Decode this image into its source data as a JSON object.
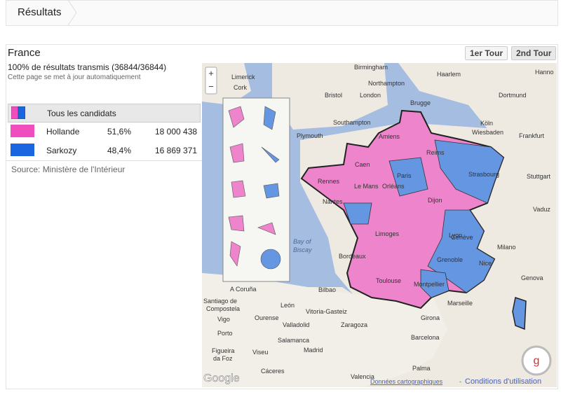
{
  "header": {
    "title": "Résultats"
  },
  "panel": {
    "title": "France",
    "status": "100% de résultats transmis (36844/36844)",
    "note": "Cette page se met à jour automatiquement",
    "tabs": [
      "1er Tour",
      "2nd Tour"
    ],
    "table": {
      "all": "Tous les candidats",
      "rows": [
        {
          "name": "Hollande",
          "percent": "51,6%",
          "votes": "18 000 438",
          "color": "#f04dbf"
        },
        {
          "name": "Sarkozy",
          "percent": "48,4%",
          "votes": "16 869 371",
          "color": "#1a66e0"
        }
      ]
    },
    "source": "Source: Ministère de l'Intérieur"
  },
  "map": {
    "zoom_in": "+",
    "zoom_out": "−",
    "labels": [
      "Limerick",
      "Cork",
      "Birmingham",
      "Northampton",
      "Haarlem",
      "Hanno",
      "Bristol",
      "London",
      "Dortmund",
      "Brugge",
      "Southampton",
      "Köln",
      "Wiesbaden",
      "Frankfurt",
      "Plymouth",
      "Stuttgart",
      "Vaduz",
      "Bay of",
      "Biscay",
      "Milano",
      "Genova",
      "Bilbao",
      "A Coruña",
      "Santiago de",
      "Compostela",
      "León",
      "Vigo",
      "Ourense",
      "Valladolid",
      "Zaragoza",
      "Girona",
      "Marseille",
      "Porto",
      "Salamanca",
      "Barcelona",
      "Madrid",
      "Viseu",
      "Figueira",
      "da Foz",
      "Palma",
      "Valencia",
      "Cáceres",
      "Vitoria-Gasteiz",
      "Rennes",
      "Nantes",
      "Le Mans",
      "Orléans",
      "Paris",
      "Dijon",
      "Limoges",
      "Bordeaux",
      "Toulouse",
      "Montpellier",
      "Lyon",
      "Grenoble",
      "Genève",
      "Strasbourg",
      "Reims",
      "Amiens",
      "Caen",
      "Nice"
    ],
    "logo": "Google",
    "data_link": "Données cartographiques",
    "separator": "-",
    "terms": "Conditions d'utilisation"
  }
}
